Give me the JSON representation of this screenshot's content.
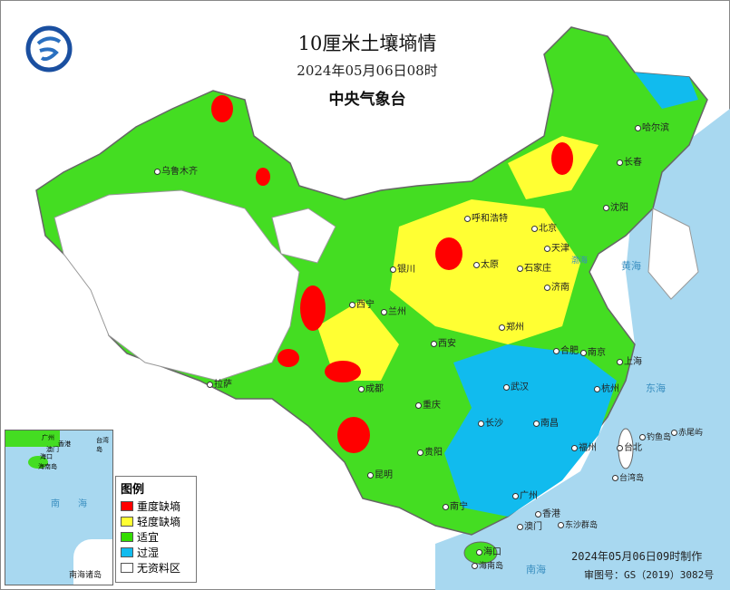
{
  "header": {
    "title": "10厘米土壤墒情",
    "datetime": "2024年05月06日08时",
    "organization": "中央气象台"
  },
  "legend": {
    "title": "图例",
    "items": [
      {
        "label": "重度缺墒",
        "color": "#ff0000"
      },
      {
        "label": "轻度缺墒",
        "color": "#ffff33"
      },
      {
        "label": "适宜",
        "color": "#33dd00"
      },
      {
        "label": "过湿",
        "color": "#11bbee"
      },
      {
        "label": "无资料区",
        "color": "#ffffff"
      }
    ]
  },
  "cities": [
    "哈尔滨",
    "长春",
    "沈阳",
    "北京",
    "天津",
    "石家庄",
    "太原",
    "呼和浩特",
    "银川",
    "西宁",
    "兰州",
    "西安",
    "郑州",
    "济南",
    "合肥",
    "南京",
    "上海",
    "杭州",
    "武汉",
    "长沙",
    "南昌",
    "福州",
    "台北",
    "重庆",
    "成都",
    "贵阳",
    "昆明",
    "南宁",
    "广州",
    "香港",
    "澳门",
    "海口",
    "拉萨",
    "乌鲁木齐"
  ],
  "places": [
    "黄海",
    "东海",
    "渤海",
    "南海",
    "海南岛",
    "台湾岛",
    "钓鱼岛",
    "赤尾屿",
    "东沙群岛"
  ],
  "inset": {
    "label": "南海诸岛",
    "sea": [
      "南",
      "海"
    ],
    "cities": [
      "广州",
      "香港",
      "澳门",
      "海口",
      "海南岛",
      "台湾岛"
    ]
  },
  "footer": {
    "made": "2024年05月06日09时制作",
    "approval": "审图号：GS（2019）3082号"
  }
}
